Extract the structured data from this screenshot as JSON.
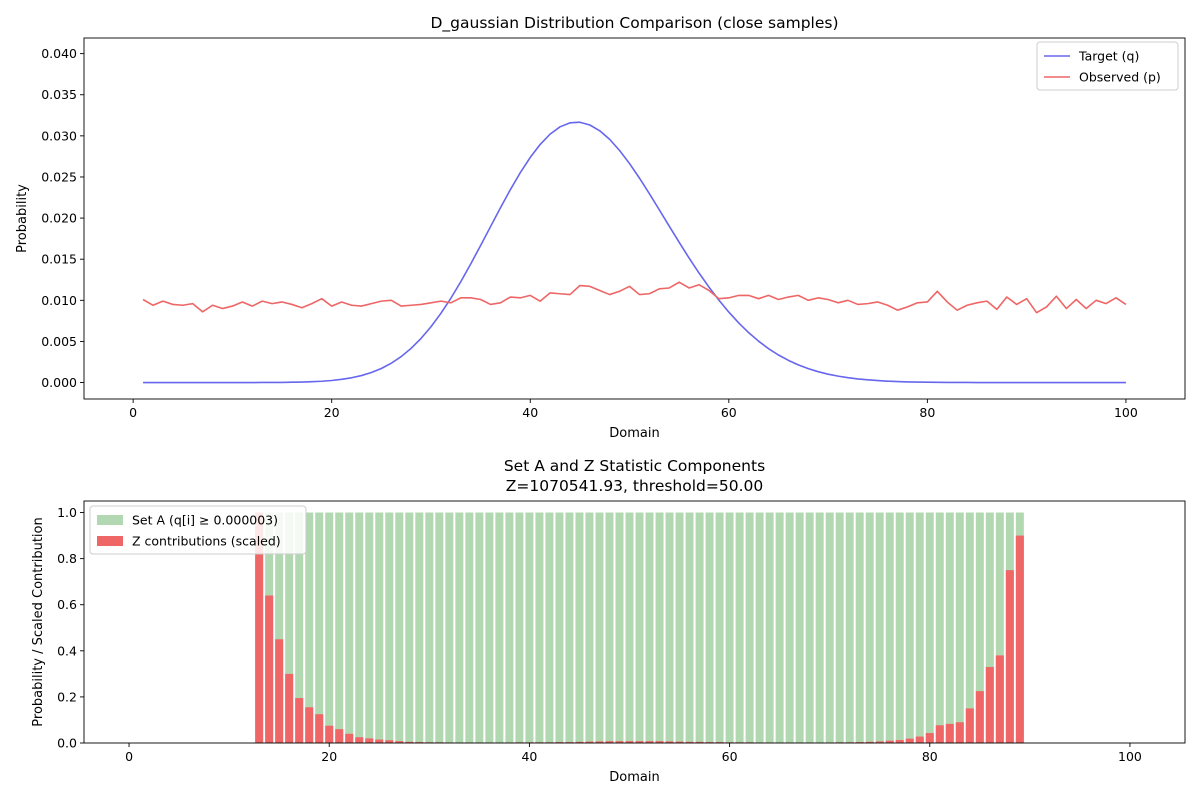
{
  "chart_data": [
    {
      "type": "line",
      "title": "D_gaussian Distribution Comparison (close samples)",
      "xlabel": "Domain",
      "ylabel": "Probability",
      "xlim": [
        -4.95,
        105.95
      ],
      "ylim": [
        -0.002,
        0.0419
      ],
      "xticks": [
        "0",
        "20",
        "40",
        "60",
        "80",
        "100"
      ],
      "yticks": [
        "0.000",
        "0.005",
        "0.010",
        "0.015",
        "0.020",
        "0.025",
        "0.030",
        "0.035",
        "0.040"
      ],
      "legend_position": "top-right",
      "series": [
        {
          "name": "Target (q)",
          "color": "#6666ee",
          "x": [
            1,
            2,
            3,
            4,
            5,
            6,
            7,
            8,
            9,
            10,
            11,
            12,
            13,
            14,
            15,
            16,
            17,
            18,
            19,
            20,
            21,
            22,
            23,
            24,
            25,
            26,
            27,
            28,
            29,
            30,
            31,
            32,
            33,
            34,
            35,
            36,
            37,
            38,
            39,
            40,
            41,
            42,
            43,
            44,
            45,
            46,
            47,
            48,
            49,
            50,
            51,
            52,
            53,
            54,
            55,
            56,
            57,
            58,
            59,
            60,
            61,
            62,
            63,
            64,
            65,
            66,
            67,
            68,
            69,
            70,
            71,
            72,
            73,
            74,
            75,
            76,
            77,
            78,
            79,
            80,
            81,
            82,
            83,
            84,
            85,
            86,
            87,
            88,
            89,
            90,
            91,
            92,
            93,
            94,
            95,
            96,
            97,
            98,
            99,
            100
          ],
          "values": [
            0.0,
            0.0,
            0.0,
            0.0,
            0.0,
            0.0,
            0.0,
            0.0,
            0.0,
            0.0,
            0.0,
            0.0,
            1e-05,
            1e-05,
            2e-05,
            4e-05,
            6e-05,
            0.0001,
            0.00016,
            0.00025,
            0.00039,
            0.00058,
            0.00085,
            0.00122,
            0.00171,
            0.00235,
            0.00316,
            0.00416,
            0.00537,
            0.00679,
            0.00842,
            0.01025,
            0.01226,
            0.01442,
            0.01667,
            0.01897,
            0.02126,
            0.02347,
            0.02553,
            0.02738,
            0.02896,
            0.03021,
            0.0311,
            0.03158,
            0.03166,
            0.03132,
            0.03062,
            0.02957,
            0.02822,
            0.02663,
            0.02486,
            0.02297,
            0.021,
            0.01902,
            0.01705,
            0.01514,
            0.01332,
            0.01161,
            0.01002,
            0.00857,
            0.00725,
            0.00607,
            0.00503,
            0.00412,
            0.00335,
            0.0027,
            0.00215,
            0.00169,
            0.00132,
            0.00102,
            0.00078,
            0.00059,
            0.00044,
            0.00033,
            0.00024,
            0.00017,
            0.00012,
            8e-05,
            6e-05,
            4e-05,
            3e-05,
            2e-05,
            1e-05,
            1e-05,
            0.0,
            0.0,
            0.0,
            0.0,
            0.0,
            0.0,
            0.0,
            0.0,
            0.0,
            0.0,
            0.0,
            0.0,
            0.0,
            0.0,
            0.0,
            0.0
          ]
        },
        {
          "name": "Observed (p)",
          "color": "#ee6666",
          "x": [
            1,
            2,
            3,
            4,
            5,
            6,
            7,
            8,
            9,
            10,
            11,
            12,
            13,
            14,
            15,
            16,
            17,
            18,
            19,
            20,
            21,
            22,
            23,
            24,
            25,
            26,
            27,
            28,
            29,
            30,
            31,
            32,
            33,
            34,
            35,
            36,
            37,
            38,
            39,
            40,
            41,
            42,
            43,
            44,
            45,
            46,
            47,
            48,
            49,
            50,
            51,
            52,
            53,
            54,
            55,
            56,
            57,
            58,
            59,
            60,
            61,
            62,
            63,
            64,
            65,
            66,
            67,
            68,
            69,
            70,
            71,
            72,
            73,
            74,
            75,
            76,
            77,
            78,
            79,
            80,
            81,
            82,
            83,
            84,
            85,
            86,
            87,
            88,
            89,
            90,
            91,
            92,
            93,
            94,
            95,
            96,
            97,
            98,
            99,
            100
          ],
          "values": [
            0.0101,
            0.0094,
            0.0099,
            0.0095,
            0.0094,
            0.0096,
            0.0086,
            0.0094,
            0.009,
            0.0093,
            0.0098,
            0.0093,
            0.0099,
            0.0096,
            0.0098,
            0.0095,
            0.0091,
            0.0096,
            0.0102,
            0.0093,
            0.0098,
            0.0094,
            0.0093,
            0.0096,
            0.0099,
            0.01,
            0.0093,
            0.0094,
            0.0095,
            0.0097,
            0.0099,
            0.0097,
            0.0103,
            0.0103,
            0.0101,
            0.0095,
            0.0097,
            0.0104,
            0.0103,
            0.0106,
            0.0099,
            0.0109,
            0.0108,
            0.0107,
            0.0118,
            0.0117,
            0.0112,
            0.0107,
            0.0111,
            0.0117,
            0.0107,
            0.0108,
            0.0114,
            0.0115,
            0.0122,
            0.0115,
            0.0119,
            0.0112,
            0.0102,
            0.0103,
            0.0106,
            0.0106,
            0.0102,
            0.0106,
            0.0101,
            0.0104,
            0.0106,
            0.01,
            0.0103,
            0.0101,
            0.0097,
            0.01,
            0.0095,
            0.0096,
            0.0098,
            0.0094,
            0.0088,
            0.0092,
            0.0097,
            0.0098,
            0.0111,
            0.0098,
            0.0088,
            0.0094,
            0.0097,
            0.0099,
            0.0089,
            0.0104,
            0.0095,
            0.0102,
            0.0085,
            0.0092,
            0.0105,
            0.009,
            0.0101,
            0.009,
            0.01,
            0.0096,
            0.0103,
            0.0095
          ]
        }
      ]
    },
    {
      "type": "bar",
      "title": "Set A and Z Statistic Components",
      "subtitle": "Z=1070541.93, threshold=50.00",
      "xlabel": "Domain",
      "ylabel": "Probability / Scaled Contribution",
      "xlim": [
        -4.5,
        105.5
      ],
      "ylim": [
        0,
        1.05
      ],
      "xticks": [
        "0",
        "20",
        "40",
        "60",
        "80",
        "100"
      ],
      "yticks": [
        "0.0",
        "0.2",
        "0.4",
        "0.6",
        "0.8",
        "1.0"
      ],
      "legend_position": "top-left",
      "series": [
        {
          "name": "Set A (q[i] ≥ 0.000003)",
          "color": "#b2d8b2",
          "x": [
            13,
            14,
            15,
            16,
            17,
            18,
            19,
            20,
            21,
            22,
            23,
            24,
            25,
            26,
            27,
            28,
            29,
            30,
            31,
            32,
            33,
            34,
            35,
            36,
            37,
            38,
            39,
            40,
            41,
            42,
            43,
            44,
            45,
            46,
            47,
            48,
            49,
            50,
            51,
            52,
            53,
            54,
            55,
            56,
            57,
            58,
            59,
            60,
            61,
            62,
            63,
            64,
            65,
            66,
            67,
            68,
            69,
            70,
            71,
            72,
            73,
            74,
            75,
            76,
            77,
            78,
            79,
            80,
            81,
            82,
            83,
            84,
            85,
            86,
            87,
            88,
            89
          ],
          "values": [
            1,
            1,
            1,
            1,
            1,
            1,
            1,
            1,
            1,
            1,
            1,
            1,
            1,
            1,
            1,
            1,
            1,
            1,
            1,
            1,
            1,
            1,
            1,
            1,
            1,
            1,
            1,
            1,
            1,
            1,
            1,
            1,
            1,
            1,
            1,
            1,
            1,
            1,
            1,
            1,
            1,
            1,
            1,
            1,
            1,
            1,
            1,
            1,
            1,
            1,
            1,
            1,
            1,
            1,
            1,
            1,
            1,
            1,
            1,
            1,
            1,
            1,
            1,
            1,
            1,
            1,
            1,
            1,
            1,
            1,
            1,
            1,
            1,
            1,
            1,
            1,
            1
          ]
        },
        {
          "name": "Z contributions (scaled)",
          "color": "#ee6666",
          "x": [
            13,
            14,
            15,
            16,
            17,
            18,
            19,
            20,
            21,
            22,
            23,
            24,
            25,
            26,
            27,
            28,
            29,
            30,
            31,
            32,
            33,
            34,
            35,
            36,
            37,
            38,
            39,
            40,
            41,
            42,
            43,
            44,
            45,
            46,
            47,
            48,
            49,
            50,
            51,
            52,
            53,
            54,
            55,
            56,
            57,
            58,
            59,
            60,
            61,
            62,
            63,
            64,
            65,
            66,
            67,
            68,
            69,
            70,
            71,
            72,
            73,
            74,
            75,
            76,
            77,
            78,
            79,
            80,
            81,
            82,
            83,
            84,
            85,
            86,
            87,
            88,
            89
          ],
          "values": [
            1.0,
            0.64,
            0.45,
            0.3,
            0.195,
            0.155,
            0.125,
            0.075,
            0.06,
            0.04,
            0.025,
            0.02,
            0.015,
            0.012,
            0.008,
            0.005,
            0.004,
            0.003,
            0.003,
            0.002,
            0.002,
            0.002,
            0.002,
            0.002,
            0.002,
            0.002,
            0.003,
            0.003,
            0.003,
            0.003,
            0.004,
            0.004,
            0.005,
            0.006,
            0.007,
            0.008,
            0.008,
            0.008,
            0.008,
            0.008,
            0.008,
            0.007,
            0.006,
            0.005,
            0.005,
            0.004,
            0.004,
            0.003,
            0.003,
            0.003,
            0.002,
            0.002,
            0.002,
            0.002,
            0.002,
            0.002,
            0.002,
            0.002,
            0.003,
            0.003,
            0.004,
            0.005,
            0.007,
            0.01,
            0.013,
            0.019,
            0.028,
            0.043,
            0.077,
            0.083,
            0.09,
            0.15,
            0.225,
            0.33,
            0.38,
            0.75,
            0.9
          ]
        }
      ]
    }
  ]
}
